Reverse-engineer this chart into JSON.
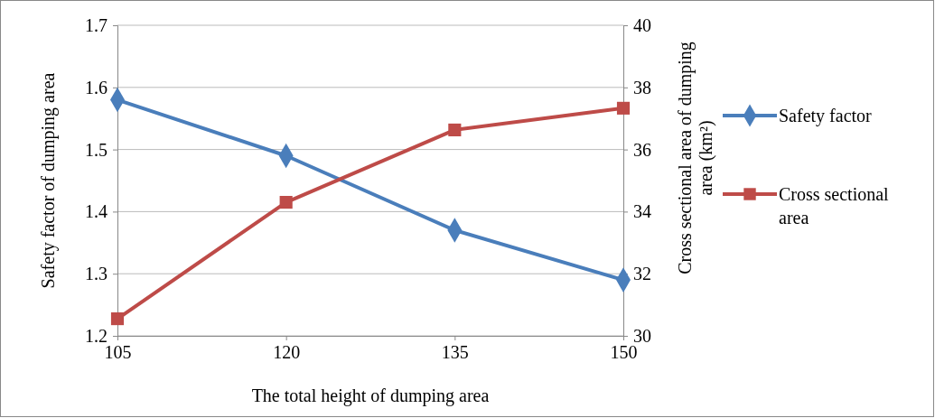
{
  "chart_data": {
    "type": "line",
    "xlabel": "The total height of dumping area",
    "ylabel": "Safety factor of dumping area",
    "y2label": "Cross sectional area of dumping area  (km²)",
    "x": [
      105,
      120,
      135,
      150
    ],
    "xlim": [
      105,
      150
    ],
    "xticks": [
      105,
      120,
      135,
      150
    ],
    "ylim": [
      1.2,
      1.7
    ],
    "yticks": [
      1.2,
      1.3,
      1.4,
      1.5,
      1.6,
      1.7
    ],
    "y2lim": [
      30,
      40
    ],
    "y2ticks": [
      30,
      32,
      34,
      36,
      38,
      40
    ],
    "grid": "y",
    "legend": "right",
    "series": [
      {
        "name": "Safety factor",
        "color": "#4a7ebb",
        "marker": "diamond",
        "values": [
          1.58,
          1.49,
          1.37,
          1.29
        ]
      },
      {
        "name": "Cross sectional area",
        "color": "#be4b48",
        "marker": "square",
        "axis": "y2",
        "values": [
          30.55,
          34.3,
          36.63,
          37.33
        ]
      }
    ]
  }
}
